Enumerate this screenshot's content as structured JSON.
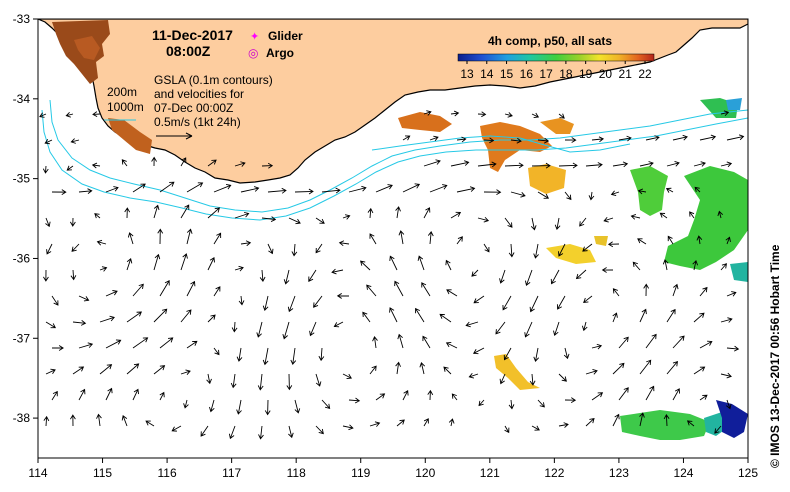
{
  "map": {
    "date": "11-Dec-2017",
    "time": "08:00Z",
    "legend": {
      "glider_label": "Glider",
      "argo_label": "Argo",
      "glider_symbol": "✦",
      "argo_symbol": "◎"
    },
    "contours": {
      "label_200": "200m",
      "label_1000": "1000m"
    },
    "gsla_lines": [
      "GSLA (0.1m contours)",
      "and velocities for",
      "07-Dec 00:00Z",
      "0.5m/s (1kt 24h)"
    ],
    "colorbar": {
      "title": "4h comp, p50, all sats",
      "ticks": [
        "13",
        "14",
        "15",
        "16",
        "17",
        "18",
        "19",
        "20",
        "21",
        "22"
      ],
      "range": [
        13,
        22
      ],
      "colors": [
        "#0b1e8c",
        "#1f4fd1",
        "#1fa0e0",
        "#22c7a0",
        "#3fcf3f",
        "#9ad12a",
        "#f2e32a",
        "#f0b428",
        "#e2621f",
        "#b4241a"
      ]
    },
    "x_ticks": [
      "114",
      "115",
      "116",
      "117",
      "118",
      "119",
      "120",
      "121",
      "122",
      "123",
      "124",
      "125"
    ],
    "y_ticks": [
      "-33",
      "-34",
      "-35",
      "-36",
      "-37",
      "-38"
    ],
    "lon_range": [
      114,
      125
    ],
    "lat_range": [
      -38.5,
      -33
    ],
    "side_label": "© IMOS 13-Dec-2017 00:56 Hobart Time",
    "colors": {
      "land": "#fdcd9f",
      "coast": "#000000",
      "isobath": "#26c9e6",
      "text": "#000000",
      "glider": "#ff00ff",
      "argo": "#cc00cc"
    }
  }
}
